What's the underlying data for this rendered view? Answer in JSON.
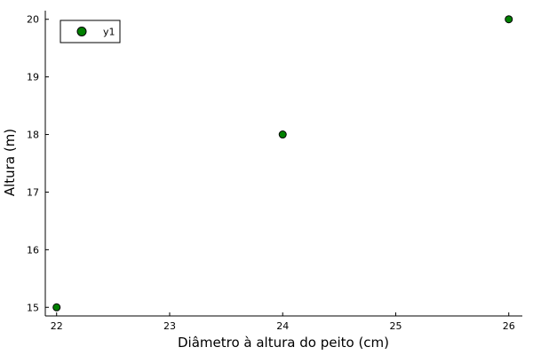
{
  "chart_data": {
    "type": "scatter",
    "title": "",
    "xlabel": "Diâmetro à altura do peito (cm)",
    "ylabel": "Altura (m)",
    "xlim": [
      21.9,
      26.12
    ],
    "ylim": [
      14.85,
      20.15
    ],
    "xticks": [
      22,
      23,
      24,
      25,
      26
    ],
    "yticks": [
      15,
      16,
      17,
      18,
      19,
      20
    ],
    "grid": false,
    "legend_position": "top-left",
    "series": [
      {
        "name": "y1",
        "color": "#008000",
        "points": [
          {
            "x": 22,
            "y": 15
          },
          {
            "x": 24,
            "y": 18
          },
          {
            "x": 26,
            "y": 20
          }
        ]
      }
    ]
  }
}
